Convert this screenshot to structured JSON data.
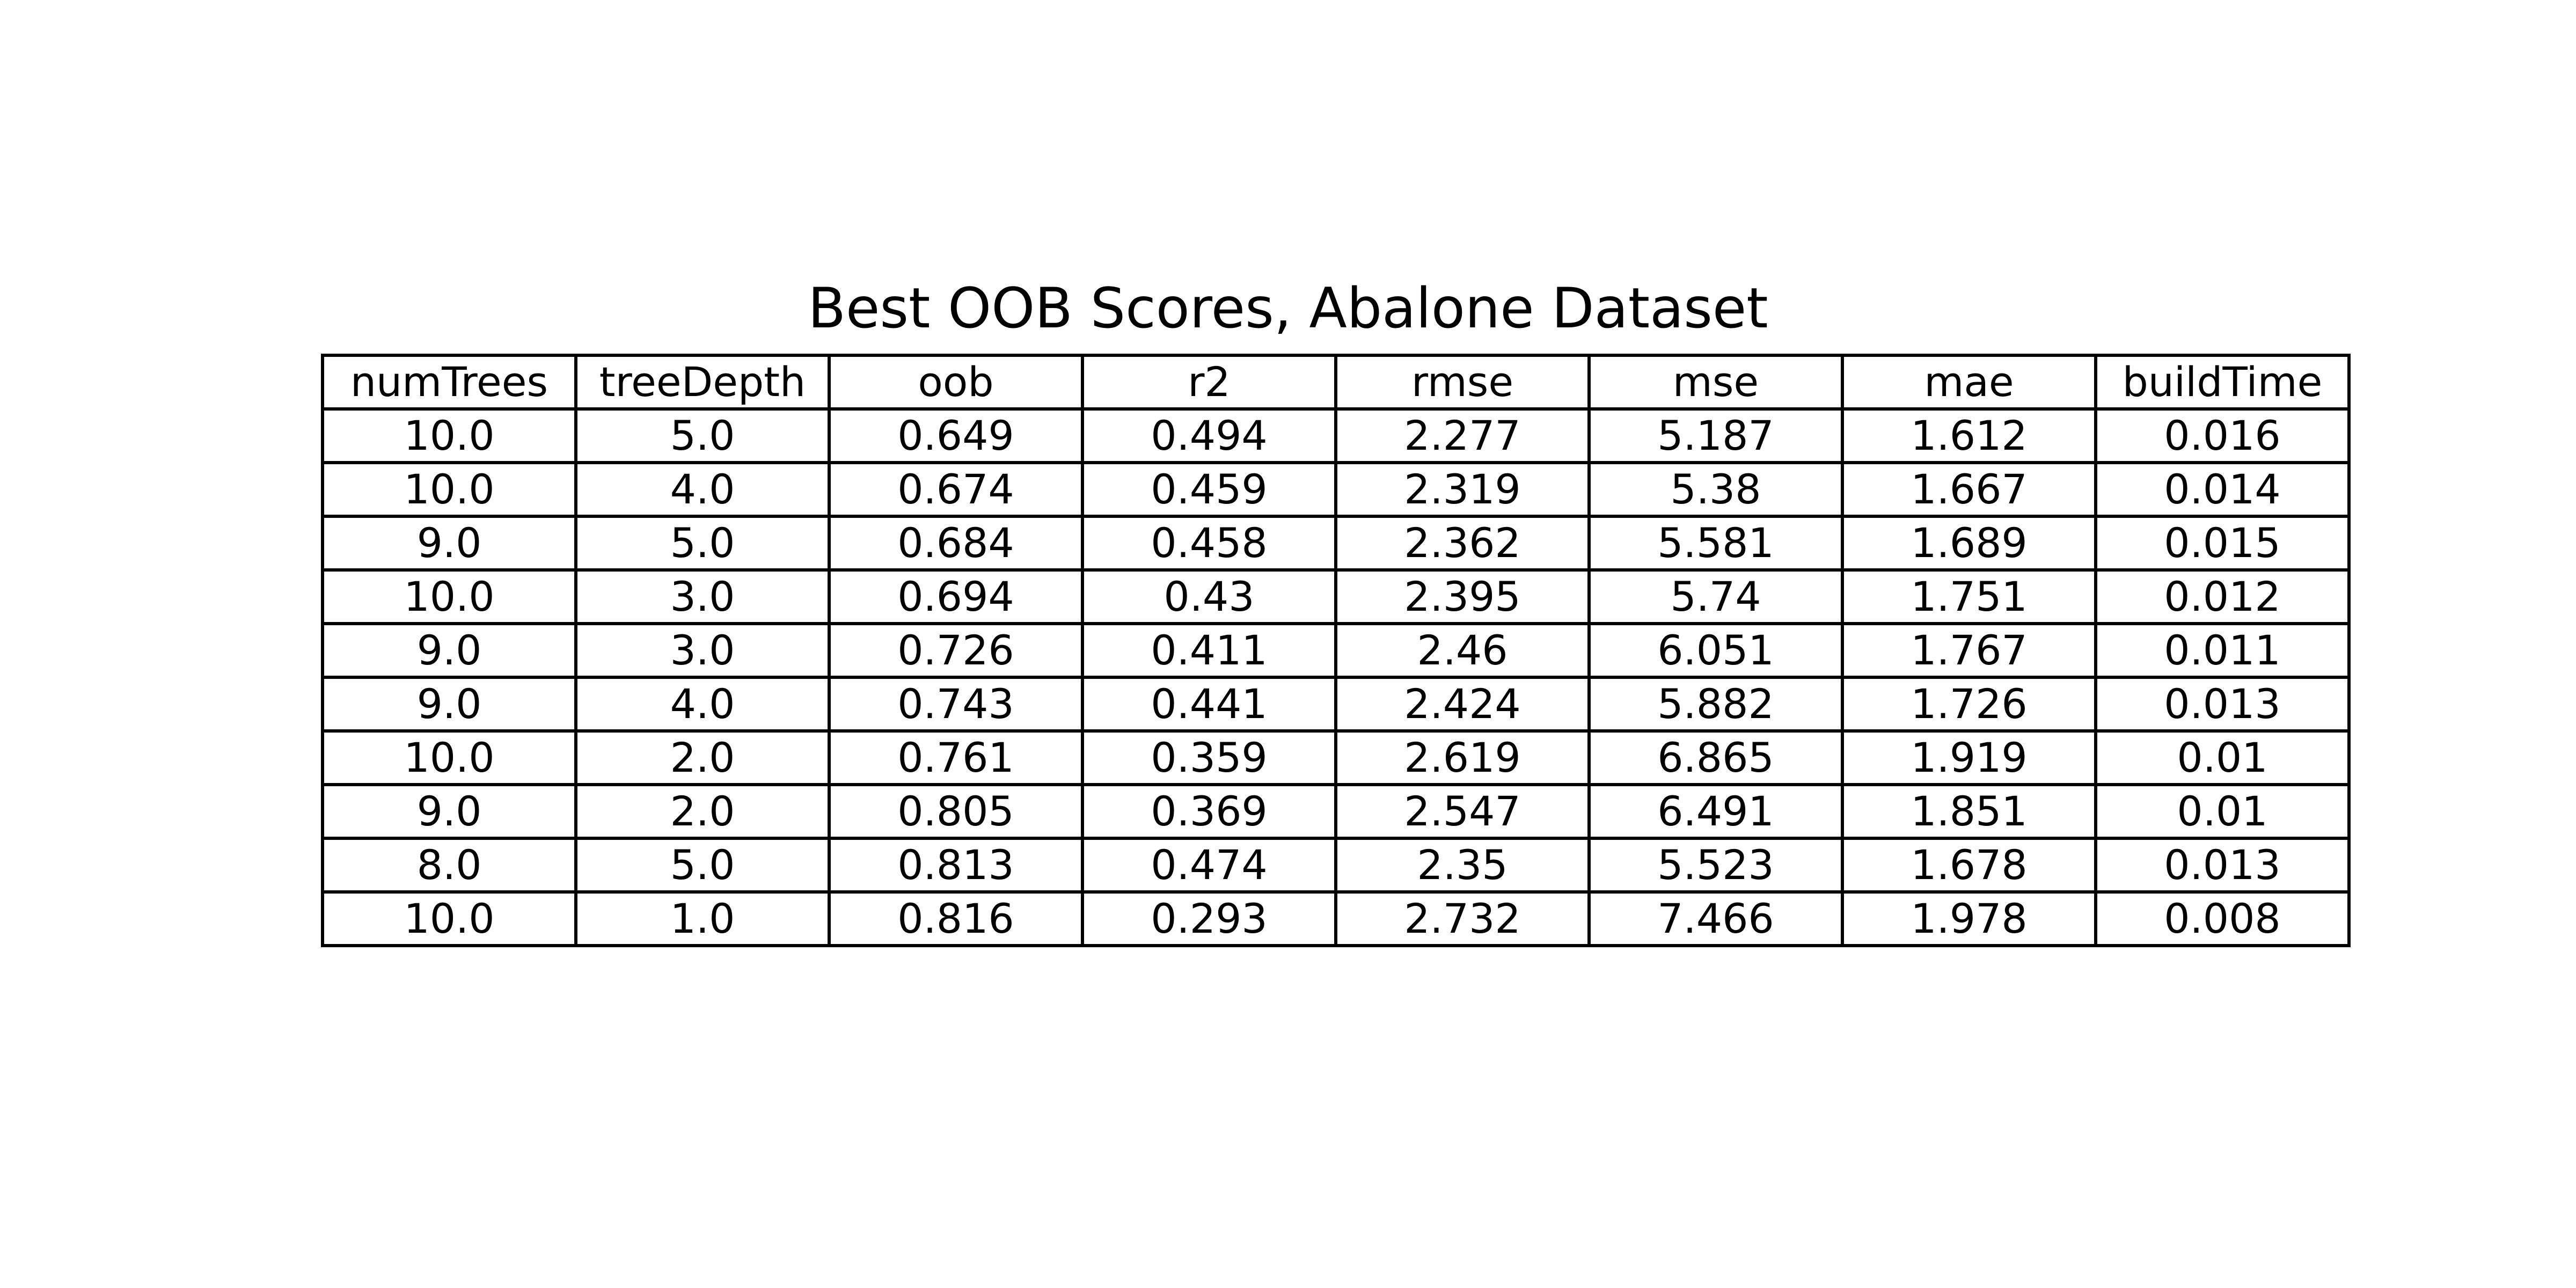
{
  "chart_data": {
    "type": "table",
    "title": "Best OOB Scores, Abalone Dataset",
    "columns": [
      "numTrees",
      "treeDepth",
      "oob",
      "r2",
      "rmse",
      "mse",
      "mae",
      "buildTime"
    ],
    "rows": [
      [
        "10.0",
        "5.0",
        "0.649",
        "0.494",
        "2.277",
        "5.187",
        "1.612",
        "0.016"
      ],
      [
        "10.0",
        "4.0",
        "0.674",
        "0.459",
        "2.319",
        "5.38",
        "1.667",
        "0.014"
      ],
      [
        "9.0",
        "5.0",
        "0.684",
        "0.458",
        "2.362",
        "5.581",
        "1.689",
        "0.015"
      ],
      [
        "10.0",
        "3.0",
        "0.694",
        "0.43",
        "2.395",
        "5.74",
        "1.751",
        "0.012"
      ],
      [
        "9.0",
        "3.0",
        "0.726",
        "0.411",
        "2.46",
        "6.051",
        "1.767",
        "0.011"
      ],
      [
        "9.0",
        "4.0",
        "0.743",
        "0.441",
        "2.424",
        "5.882",
        "1.726",
        "0.013"
      ],
      [
        "10.0",
        "2.0",
        "0.761",
        "0.359",
        "2.619",
        "6.865",
        "1.919",
        "0.01"
      ],
      [
        "9.0",
        "2.0",
        "0.805",
        "0.369",
        "2.547",
        "6.491",
        "1.851",
        "0.01"
      ],
      [
        "8.0",
        "5.0",
        "0.813",
        "0.474",
        "2.35",
        "5.523",
        "1.678",
        "0.013"
      ],
      [
        "10.0",
        "1.0",
        "0.816",
        "0.293",
        "2.732",
        "7.466",
        "1.978",
        "0.008"
      ]
    ]
  }
}
